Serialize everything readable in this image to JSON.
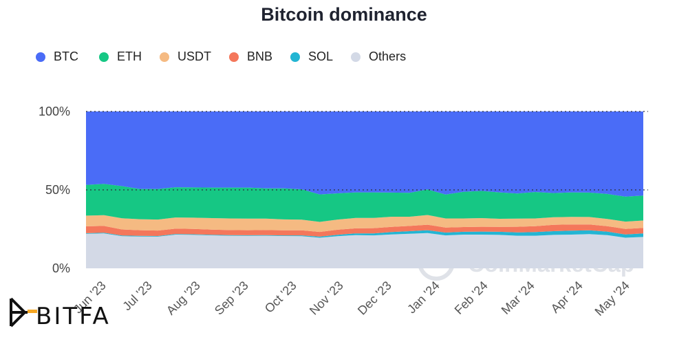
{
  "chart_data": {
    "type": "area",
    "stacked": true,
    "title": "Bitcoin dominance",
    "y_unit": "%",
    "ylim": [
      0,
      100
    ],
    "y_ticks": [
      "0%",
      "50%",
      "100%"
    ],
    "x_tick_labels": [
      "Jun '23",
      "Jul '23",
      "Aug '23",
      "Sep '23",
      "Oct '23",
      "Nov '23",
      "Dec '23",
      "Jan '24",
      "Feb '24",
      "Mar '24",
      "Apr '24",
      "May '24"
    ],
    "grid": true,
    "legend_position": "top-left",
    "watermark": "CoinMarketCap",
    "x": [
      "Jun '23",
      "Jun '23",
      "Jun '23",
      "Jul '23",
      "Jul '23",
      "Aug '23",
      "Aug '23",
      "Aug '23",
      "Sep '23",
      "Sep '23",
      "Oct '23",
      "Oct '23",
      "Oct '23",
      "Nov '23",
      "Nov '23",
      "Dec '23",
      "Dec '23",
      "Dec '23",
      "Jan '24",
      "Jan '24",
      "Jan '24",
      "Feb '24",
      "Feb '24",
      "Feb '24",
      "Mar '24",
      "Mar '24",
      "Mar '24",
      "Apr '24",
      "Apr '24",
      "Apr '24",
      "May '24",
      "May '24"
    ],
    "series": [
      {
        "name": "Others",
        "color": "#d3d9e6",
        "values": [
          22.0,
          22.3,
          20.5,
          20.3,
          20.2,
          21.5,
          21.3,
          21.0,
          20.8,
          20.7,
          20.8,
          20.6,
          20.5,
          19.5,
          20.5,
          21.2,
          21.0,
          21.6,
          22.0,
          22.5,
          21.0,
          21.5,
          21.5,
          21.3,
          20.8,
          20.8,
          21.3,
          21.5,
          21.8,
          21.2,
          19.5,
          20.0
        ]
      },
      {
        "name": "SOL",
        "color": "#23b5d3",
        "values": [
          0.4,
          0.4,
          0.4,
          0.4,
          0.4,
          0.4,
          0.4,
          0.4,
          0.4,
          0.4,
          0.4,
          0.4,
          0.5,
          0.7,
          0.9,
          1.1,
          1.3,
          1.5,
          1.7,
          1.8,
          1.8,
          1.8,
          1.9,
          2.0,
          2.1,
          2.3,
          2.4,
          2.5,
          2.4,
          2.2,
          2.1,
          2.3
        ]
      },
      {
        "name": "BNB",
        "color": "#f4775b",
        "values": [
          4.4,
          4.3,
          3.9,
          3.6,
          3.5,
          3.4,
          3.4,
          3.3,
          3.2,
          3.2,
          3.2,
          3.2,
          3.2,
          3.0,
          3.2,
          3.2,
          3.3,
          3.3,
          3.3,
          3.5,
          3.2,
          3.0,
          3.1,
          3.1,
          3.6,
          3.8,
          4.0,
          4.0,
          3.8,
          3.5,
          3.5,
          3.5
        ]
      },
      {
        "name": "USDT",
        "color": "#f5ba82",
        "values": [
          6.8,
          6.9,
          7.1,
          7.0,
          7.0,
          7.1,
          7.2,
          7.3,
          7.4,
          7.4,
          7.3,
          7.0,
          6.8,
          6.4,
          6.5,
          6.6,
          6.5,
          6.5,
          5.9,
          6.2,
          5.8,
          5.5,
          5.5,
          5.2,
          5.2,
          4.9,
          4.9,
          4.8,
          4.7,
          4.6,
          4.7,
          4.7
        ]
      },
      {
        "name": "ETH",
        "color": "#16c784",
        "values": [
          19.6,
          19.9,
          20.5,
          19.3,
          19.5,
          19.3,
          19.3,
          19.5,
          19.7,
          19.8,
          19.3,
          19.8,
          19.4,
          17.5,
          16.7,
          16.3,
          16.3,
          15.4,
          15.2,
          16.3,
          15.2,
          17.0,
          17.4,
          16.8,
          16.0,
          16.9,
          15.4,
          15.6,
          15.6,
          15.9,
          15.9,
          15.9
        ]
      },
      {
        "name": "BTC",
        "color": "#4a6cf7",
        "values": [
          46.8,
          46.2,
          47.6,
          49.4,
          49.4,
          48.3,
          48.4,
          48.5,
          48.5,
          48.5,
          49.0,
          49.0,
          49.6,
          52.9,
          52.2,
          51.6,
          51.6,
          51.7,
          51.9,
          49.7,
          53.0,
          51.2,
          50.6,
          51.6,
          52.3,
          51.3,
          52.0,
          51.6,
          51.7,
          52.6,
          54.3,
          53.6
        ]
      }
    ]
  },
  "branding": {
    "logo_text": "BITFA"
  }
}
